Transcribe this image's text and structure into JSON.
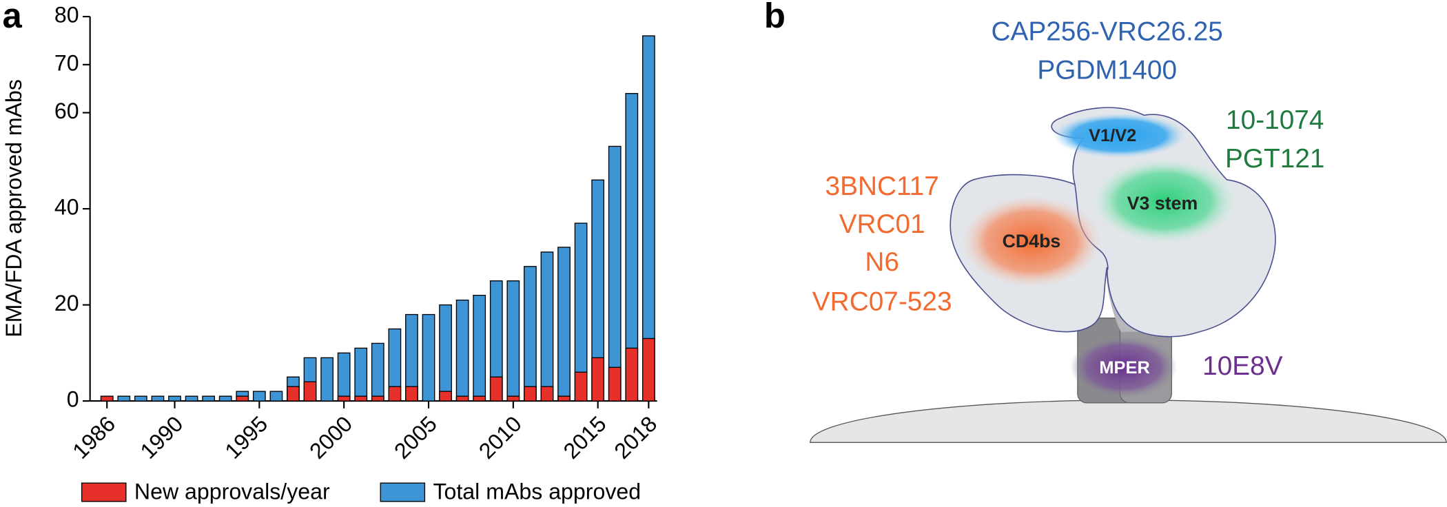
{
  "panel_labels": [
    "a",
    "b"
  ],
  "chart_data": {
    "type": "bar",
    "ylabel": "EMA/FDA approved mAbs",
    "x": [
      1986,
      1987,
      1988,
      1989,
      1990,
      1991,
      1992,
      1993,
      1994,
      1995,
      1996,
      1997,
      1998,
      1999,
      2000,
      2001,
      2002,
      2003,
      2004,
      2005,
      2006,
      2007,
      2008,
      2009,
      2010,
      2011,
      2012,
      2013,
      2014,
      2015,
      2016,
      2017,
      2018
    ],
    "xlim": [
      1985,
      2018.5
    ],
    "xticks": [
      1986,
      1990,
      1995,
      2000,
      2005,
      2010,
      2015,
      2018
    ],
    "ylim": [
      0,
      80
    ],
    "yticks": [
      0,
      20,
      40,
      60,
      70,
      80
    ],
    "grid": false,
    "legend": "bottom",
    "series": [
      {
        "name": "Total mAbs approved",
        "color": "#3d95d6",
        "values": [
          1,
          1,
          1,
          1,
          1,
          1,
          1,
          1,
          2,
          2,
          2,
          5,
          9,
          9,
          10,
          11,
          12,
          15,
          18,
          18,
          20,
          21,
          22,
          25,
          25,
          28,
          31,
          32,
          37,
          46,
          53,
          64,
          76
        ]
      },
      {
        "name": "New approvals/year",
        "color": "#e8302a",
        "values": [
          1,
          0,
          0,
          0,
          0,
          0,
          0,
          0,
          1,
          0,
          0,
          3,
          4,
          0,
          1,
          1,
          1,
          3,
          3,
          0,
          2,
          1,
          1,
          5,
          1,
          3,
          3,
          1,
          6,
          9,
          7,
          11,
          13
        ]
      }
    ]
  },
  "diagram": {
    "top_antibodies": [
      "CAP256-VRC26.25",
      "PGDM1400"
    ],
    "right_antibodies": [
      "10-1074",
      "PGT121"
    ],
    "left_antibodies": [
      "3BNC117",
      "VRC01",
      "N6",
      "VRC07-523"
    ],
    "mper_antibodies": [
      "10E8V"
    ],
    "sites": [
      "V1/V2",
      "V3 stem",
      "CD4bs",
      "MPER"
    ]
  }
}
